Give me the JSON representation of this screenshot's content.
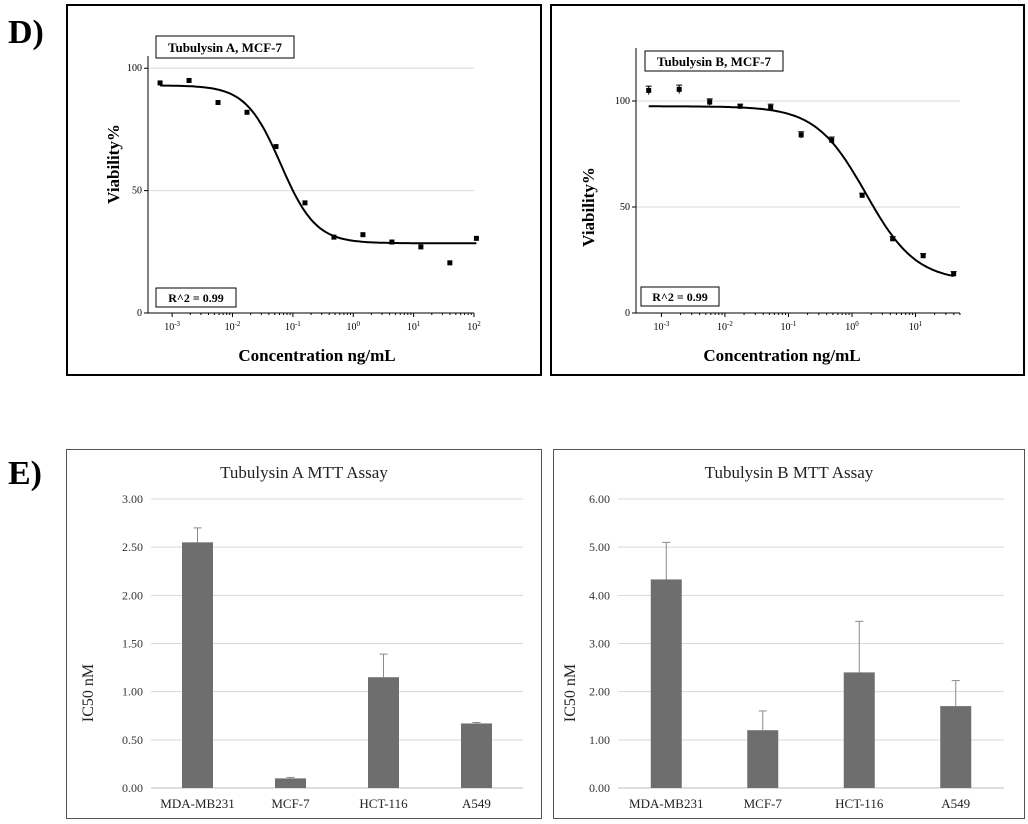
{
  "labels": {
    "panel_d": "D)",
    "panel_e": "E)"
  },
  "colors": {
    "bar": "#6e6e6e",
    "grid": "#d9d9d9",
    "errbar": "#8a8a8a",
    "curve": "#000000"
  },
  "chart_data": [
    {
      "type": "scatter",
      "title": "Tubulysin A, MCF-7",
      "xlabel": "Concentration ng/mL",
      "ylabel": "Viability%",
      "annotation": "R^2 = 0.99",
      "xscale": "log",
      "xlim_exp": [
        -3.4,
        2
      ],
      "ylim": [
        0,
        105
      ],
      "y_ticks": [
        "0",
        "50",
        "100"
      ],
      "x_tick_base": "10",
      "x_tick_exps": [
        "-3",
        "-2",
        "-1",
        "0",
        "1",
        "2"
      ],
      "grid": true,
      "points": [
        {
          "logx": -3.2,
          "y": 94
        },
        {
          "logx": -2.72,
          "y": 95
        },
        {
          "logx": -2.24,
          "y": 86
        },
        {
          "logx": -1.76,
          "y": 82
        },
        {
          "logx": -1.28,
          "y": 68
        },
        {
          "logx": -0.8,
          "y": 45
        },
        {
          "logx": -0.32,
          "y": 31
        },
        {
          "logx": 0.16,
          "y": 32
        },
        {
          "logx": 0.64,
          "y": 29
        },
        {
          "logx": 1.12,
          "y": 27
        },
        {
          "logx": 1.6,
          "y": 20.5
        },
        {
          "logx": 2.04,
          "y": 30.5
        }
      ],
      "fit": {
        "top": 93,
        "bottom": 28.5,
        "log_ec50": -1.2,
        "hill": 1.5
      }
    },
    {
      "type": "scatter",
      "title": "Tubulysin B, MCF-7",
      "xlabel": "Concentration ng/mL",
      "ylabel": "Viability%",
      "annotation": "R^2 = 0.99",
      "xscale": "log",
      "xlim_exp": [
        -3.4,
        1.7
      ],
      "ylim": [
        0,
        125
      ],
      "y_ticks": [
        "0",
        "50",
        "100"
      ],
      "x_tick_base": "10",
      "x_tick_exps": [
        "-3",
        "-2",
        "-1",
        "0",
        "1"
      ],
      "grid": true,
      "points": [
        {
          "logx": -3.2,
          "y": 105,
          "err": 2
        },
        {
          "logx": -2.72,
          "y": 105.5,
          "err": 2
        },
        {
          "logx": -2.24,
          "y": 99.5,
          "err": 1.5
        },
        {
          "logx": -1.76,
          "y": 97.5,
          "err": 1
        },
        {
          "logx": -1.28,
          "y": 97,
          "err": 1.5
        },
        {
          "logx": -0.8,
          "y": 84,
          "err": 1.5
        },
        {
          "logx": -0.32,
          "y": 81.5,
          "err": 1.5
        },
        {
          "logx": 0.16,
          "y": 55.5,
          "err": 1
        },
        {
          "logx": 0.64,
          "y": 35,
          "err": 1
        },
        {
          "logx": 1.12,
          "y": 27,
          "err": 1
        },
        {
          "logx": 1.6,
          "y": 18.5,
          "err": 1
        }
      ],
      "fit": {
        "top": 97.5,
        "bottom": 15,
        "log_ec50": 0.22,
        "hill": 1.1
      }
    },
    {
      "type": "bar",
      "title": "Tubulysin A MTT Assay",
      "xlabel": "",
      "ylabel": "IC50 nM",
      "categories": [
        "MDA-MB231",
        "MCF-7",
        "HCT-116",
        "A549"
      ],
      "values": [
        2.55,
        0.1,
        1.15,
        0.67
      ],
      "errors": [
        0.15,
        0.01,
        0.24,
        0.01
      ],
      "ylim": [
        0,
        3
      ],
      "y_ticks": [
        "0.00",
        "0.50",
        "1.00",
        "1.50",
        "2.00",
        "2.50",
        "3.00"
      ],
      "grid": true
    },
    {
      "type": "bar",
      "title": "Tubulysin B MTT Assay",
      "xlabel": "",
      "ylabel": "IC50 nM",
      "categories": [
        "MDA-MB231",
        "MCF-7",
        "HCT-116",
        "A549"
      ],
      "values": [
        4.33,
        1.2,
        2.4,
        1.7
      ],
      "errors": [
        0.77,
        0.4,
        1.06,
        0.53
      ],
      "ylim": [
        0,
        6
      ],
      "y_ticks": [
        "0.00",
        "1.00",
        "2.00",
        "3.00",
        "4.00",
        "5.00",
        "6.00"
      ],
      "grid": true
    }
  ]
}
